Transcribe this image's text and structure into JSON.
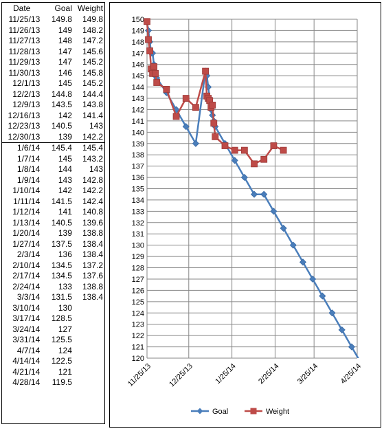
{
  "table": {
    "headers": {
      "date": "Date",
      "goal": "Goal",
      "weight": "Weight"
    },
    "rows": [
      {
        "date": "11/25/13",
        "goal": "149.8",
        "weight": "149.8"
      },
      {
        "date": "11/26/13",
        "goal": "149",
        "weight": "148.2"
      },
      {
        "date": "11/27/13",
        "goal": "148",
        "weight": "147.2"
      },
      {
        "date": "11/28/13",
        "goal": "147",
        "weight": "145.6"
      },
      {
        "date": "11/29/13",
        "goal": "147",
        "weight": "145.2"
      },
      {
        "date": "11/30/13",
        "goal": "146",
        "weight": "145.8"
      },
      {
        "date": "12/1/13",
        "goal": "145",
        "weight": "145.2"
      },
      {
        "date": "12/2/13",
        "goal": "144.8",
        "weight": "144.4"
      },
      {
        "date": "12/9/13",
        "goal": "143.5",
        "weight": "143.8"
      },
      {
        "date": "12/16/13",
        "goal": "142",
        "weight": "141.4"
      },
      {
        "date": "12/23/13",
        "goal": "140.5",
        "weight": "143"
      },
      {
        "date": "12/30/13",
        "goal": "139",
        "weight": "142.2"
      },
      {
        "date": "1/6/14",
        "goal": "145.4",
        "weight": "145.4"
      },
      {
        "date": "1/7/14",
        "goal": "145",
        "weight": "143.2"
      },
      {
        "date": "1/8/14",
        "goal": "144",
        "weight": "143"
      },
      {
        "date": "1/9/14",
        "goal": "143",
        "weight": "142.8"
      },
      {
        "date": "1/10/14",
        "goal": "142",
        "weight": "142.2"
      },
      {
        "date": "1/11/14",
        "goal": "141.5",
        "weight": "142.4"
      },
      {
        "date": "1/12/14",
        "goal": "141",
        "weight": "140.8"
      },
      {
        "date": "1/13/14",
        "goal": "140.5",
        "weight": "139.6"
      },
      {
        "date": "1/20/14",
        "goal": "139",
        "weight": "138.8"
      },
      {
        "date": "1/27/14",
        "goal": "137.5",
        "weight": "138.4"
      },
      {
        "date": "2/3/14",
        "goal": "136",
        "weight": "138.4"
      },
      {
        "date": "2/10/14",
        "goal": "134.5",
        "weight": "137.2"
      },
      {
        "date": "2/17/14",
        "goal": "134.5",
        "weight": "137.6"
      },
      {
        "date": "2/24/14",
        "goal": "133",
        "weight": "138.8"
      },
      {
        "date": "3/3/14",
        "goal": "131.5",
        "weight": "138.4"
      },
      {
        "date": "3/10/14",
        "goal": "130",
        "weight": ""
      },
      {
        "date": "3/17/14",
        "goal": "128.5",
        "weight": ""
      },
      {
        "date": "3/24/14",
        "goal": "127",
        "weight": ""
      },
      {
        "date": "3/31/14",
        "goal": "125.5",
        "weight": ""
      },
      {
        "date": "4/7/14",
        "goal": "124",
        "weight": ""
      },
      {
        "date": "4/14/14",
        "goal": "122.5",
        "weight": ""
      },
      {
        "date": "4/21/14",
        "goal": "121",
        "weight": ""
      },
      {
        "date": "4/28/14",
        "goal": "119.5",
        "weight": ""
      }
    ]
  },
  "chart_data": {
    "type": "line",
    "title": "",
    "xlabel": "",
    "ylabel": "",
    "ylim": [
      120,
      150
    ],
    "ytick_step": 1,
    "xlim": [
      "11/25/13",
      "4/25/14"
    ],
    "xticks": [
      "11/25/13",
      "12/25/13",
      "1/25/14",
      "2/25/14",
      "3/25/14",
      "4/25/14"
    ],
    "grid": "vertical and horizontal",
    "legend": "bottom",
    "x": [
      "11/25/13",
      "11/26/13",
      "11/27/13",
      "11/28/13",
      "11/29/13",
      "11/30/13",
      "12/1/13",
      "12/2/13",
      "12/9/13",
      "12/16/13",
      "12/23/13",
      "12/30/13",
      "1/6/14",
      "1/7/14",
      "1/8/14",
      "1/9/14",
      "1/10/14",
      "1/11/14",
      "1/12/14",
      "1/13/14",
      "1/20/14",
      "1/27/14",
      "2/3/14",
      "2/10/14",
      "2/17/14",
      "2/24/14",
      "3/3/14",
      "3/10/14",
      "3/17/14",
      "3/24/14",
      "3/31/14",
      "4/7/14",
      "4/14/14",
      "4/21/14",
      "4/28/14"
    ],
    "series": [
      {
        "name": "Goal",
        "color": "#4a7ebb",
        "marker": "diamond",
        "values": [
          149.8,
          149,
          148,
          147,
          147,
          146,
          145,
          144.8,
          143.5,
          142,
          140.5,
          139,
          145.4,
          145,
          144,
          143,
          142,
          141.5,
          141,
          140.5,
          139,
          137.5,
          136,
          134.5,
          134.5,
          133,
          131.5,
          130,
          128.5,
          127,
          125.5,
          124,
          122.5,
          121,
          119.5
        ]
      },
      {
        "name": "Weight",
        "color": "#be4b48",
        "marker": "square",
        "values": [
          149.8,
          148.2,
          147.2,
          145.6,
          145.2,
          145.8,
          145.2,
          144.4,
          143.8,
          141.4,
          143,
          142.2,
          145.4,
          143.2,
          143,
          142.8,
          142.2,
          142.4,
          140.8,
          139.6,
          138.8,
          138.4,
          138.4,
          137.2,
          137.6,
          138.8,
          138.4,
          null,
          null,
          null,
          null,
          null,
          null,
          null,
          null
        ]
      }
    ]
  }
}
